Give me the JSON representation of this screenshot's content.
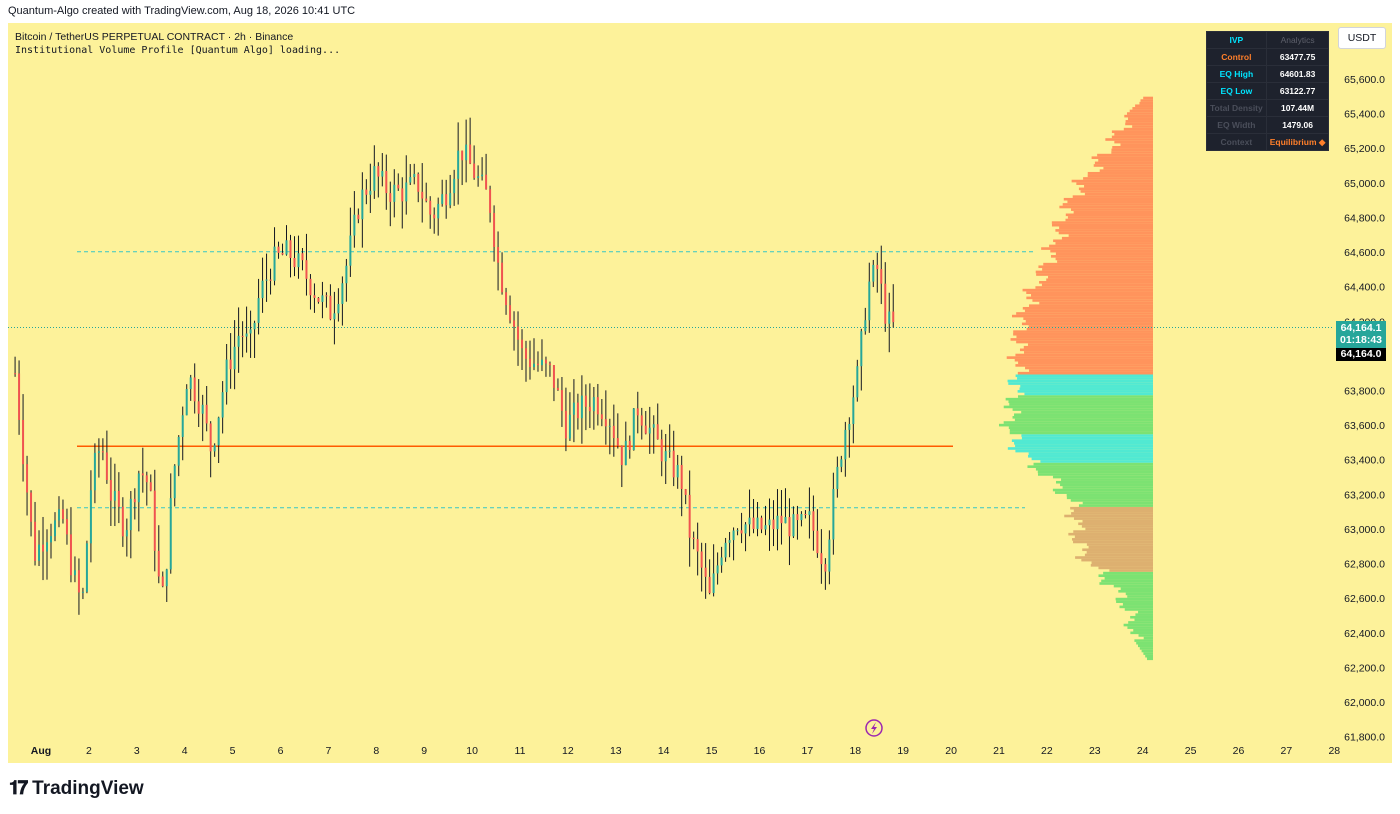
{
  "header": {
    "created_by": "Quantum-Algo created with TradingView.com, Aug 18, 2026 10:41 UTC"
  },
  "legend": {
    "symbol": "Bitcoin / TetherUS PERPETUAL CONTRACT · 2h · Binance",
    "indicator": "Institutional Volume Profile [Quantum Algo] loading..."
  },
  "currency_button": "USDT",
  "ivp_panel": {
    "headers": [
      "IVP",
      "Analytics"
    ],
    "rows": [
      {
        "label": "Control",
        "value": "63477.75",
        "label_color": "#ff7f2a"
      },
      {
        "label": "EQ High",
        "value": "64601.83",
        "label_color": "#00e5ff"
      },
      {
        "label": "EQ Low",
        "value": "63122.77",
        "label_color": "#00e5ff"
      },
      {
        "label": "Total Density",
        "value": "107.44M",
        "label_color": "#4a4e5a"
      },
      {
        "label": "EQ Width",
        "value": "1479.06",
        "label_color": "#4a4e5a"
      },
      {
        "label": "Context",
        "value": "Equilibrium ◆",
        "label_color": "#4a4e5a",
        "value_color": "#ff7f2a"
      }
    ]
  },
  "price_tags": {
    "last": "64,164.1",
    "countdown": "01:18:43",
    "crosshair": "64,164.0"
  },
  "brand": "TradingView",
  "colors": {
    "background": "#fdf29a",
    "candle_up": "#26a69a",
    "candle_down": "#ef5350",
    "poc_line": "#ff5a00",
    "eq_line": "#36c6c6",
    "profile_upper": "#ff8a55",
    "profile_value_area": "#3ee8d8",
    "profile_lower": "#6ee06e",
    "accent": "#2962ff"
  },
  "chart_data": {
    "type": "candlestick",
    "x_labels": [
      "Aug",
      "2",
      "3",
      "4",
      "5",
      "6",
      "7",
      "8",
      "9",
      "10",
      "11",
      "12",
      "13",
      "14",
      "15",
      "16",
      "17",
      "18",
      "19",
      "20",
      "21",
      "22",
      "23",
      "24",
      "25",
      "26",
      "27",
      "28"
    ],
    "y_ticks": [
      "65,600.0",
      "65,400.0",
      "65,200.0",
      "65,000.0",
      "64,800.0",
      "64,600.0",
      "64,400.0",
      "64,200.0",
      "63,800.0",
      "63,600.0",
      "63,400.0",
      "63,200.0",
      "63,000.0",
      "62,800.0",
      "62,600.0",
      "62,400.0",
      "62,200.0",
      "62,000.0",
      "61,800.0"
    ],
    "y_tick_values": [
      65600,
      65400,
      65200,
      65000,
      64800,
      64600,
      64400,
      64200,
      63800,
      63600,
      63400,
      63200,
      63000,
      62800,
      62600,
      62400,
      62200,
      62000,
      61800
    ],
    "ylim": [
      61700,
      65900
    ],
    "levels": {
      "control": 63477.75,
      "eq_high": 64601.83,
      "eq_low": 63122.77,
      "last": 64164.1
    },
    "close_path": [
      [
        0.0,
        63900
      ],
      [
        0.2,
        63350
      ],
      [
        0.4,
        62850
      ],
      [
        0.7,
        63000
      ],
      [
        1.0,
        63050
      ],
      [
        1.2,
        62750
      ],
      [
        1.4,
        62550
      ],
      [
        1.6,
        63300
      ],
      [
        1.8,
        63500
      ],
      [
        2.0,
        63200
      ],
      [
        2.3,
        63000
      ],
      [
        2.6,
        63350
      ],
      [
        2.8,
        63250
      ],
      [
        3.0,
        62700
      ],
      [
        3.1,
        62600
      ],
      [
        3.3,
        63300
      ],
      [
        3.6,
        63900
      ],
      [
        3.9,
        63700
      ],
      [
        4.1,
        63450
      ],
      [
        4.4,
        63900
      ],
      [
        4.7,
        64150
      ],
      [
        4.9,
        64050
      ],
      [
        5.1,
        64350
      ],
      [
        5.4,
        64550
      ],
      [
        5.7,
        64600
      ],
      [
        6.0,
        64500
      ],
      [
        6.3,
        64350
      ],
      [
        6.6,
        64250
      ],
      [
        6.9,
        64500
      ],
      [
        7.2,
        64900
      ],
      [
        7.5,
        65050
      ],
      [
        7.8,
        64950
      ],
      [
        8.1,
        64950
      ],
      [
        8.4,
        65000
      ],
      [
        8.7,
        64800
      ],
      [
        9.0,
        64950
      ],
      [
        9.3,
        65200
      ],
      [
        9.6,
        65050
      ],
      [
        9.9,
        64900
      ],
      [
        10.1,
        64500
      ],
      [
        10.3,
        64300
      ],
      [
        10.6,
        64000
      ],
      [
        10.9,
        63950
      ],
      [
        11.2,
        63900
      ],
      [
        11.5,
        63600
      ],
      [
        11.8,
        63700
      ],
      [
        12.1,
        63750
      ],
      [
        12.4,
        63650
      ],
      [
        12.7,
        63400
      ],
      [
        13.0,
        63700
      ],
      [
        13.3,
        63550
      ],
      [
        13.6,
        63400
      ],
      [
        13.9,
        63300
      ],
      [
        14.1,
        62950
      ],
      [
        14.3,
        62800
      ],
      [
        14.5,
        62600
      ],
      [
        14.8,
        62950
      ],
      [
        15.1,
        63050
      ],
      [
        15.4,
        63000
      ],
      [
        15.7,
        63000
      ],
      [
        16.0,
        63050
      ],
      [
        16.3,
        63000
      ],
      [
        16.6,
        63050
      ],
      [
        16.9,
        62800
      ],
      [
        17.1,
        63200
      ],
      [
        17.3,
        63550
      ],
      [
        17.6,
        63900
      ],
      [
        17.8,
        64400
      ],
      [
        18.0,
        64500
      ],
      [
        18.2,
        64200
      ],
      [
        18.4,
        64150
      ]
    ],
    "volume_profile": {
      "poc": 63477.75,
      "value_area": [
        63122.77,
        64601.83
      ],
      "top": 65500,
      "bottom": 62250
    }
  }
}
